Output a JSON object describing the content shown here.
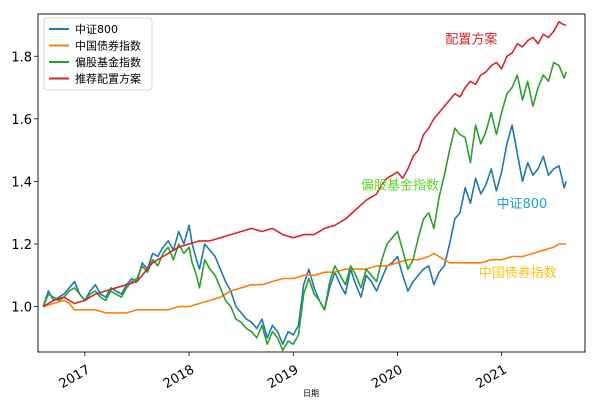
{
  "chart_data": {
    "type": "line",
    "xlabel": "日期",
    "ylabel": "",
    "xlim": [
      2016.55,
      2021.8
    ],
    "ylim": [
      0.855,
      1.935
    ],
    "xticks": [
      {
        "value": 2017.0,
        "label": "2017"
      },
      {
        "value": 2018.0,
        "label": "2018"
      },
      {
        "value": 2019.0,
        "label": "2019"
      },
      {
        "value": 2020.0,
        "label": "2020"
      },
      {
        "value": 2021.0,
        "label": "2021"
      }
    ],
    "yticks": [
      {
        "value": 1.0,
        "label": "1.0"
      },
      {
        "value": 1.2,
        "label": "1.2"
      },
      {
        "value": 1.4,
        "label": "1.4"
      },
      {
        "value": 1.6,
        "label": "1.6"
      },
      {
        "value": 1.8,
        "label": "1.8"
      }
    ],
    "grid": false,
    "legend_position": "top-left",
    "series": [
      {
        "name": "中证800",
        "color": "#1f77b4",
        "x": [
          2016.6,
          2016.65,
          2016.7,
          2016.75,
          2016.8,
          2016.85,
          2016.9,
          2016.95,
          2017.0,
          2017.05,
          2017.1,
          2017.15,
          2017.2,
          2017.25,
          2017.3,
          2017.35,
          2017.4,
          2017.45,
          2017.5,
          2017.55,
          2017.6,
          2017.65,
          2017.7,
          2017.75,
          2017.8,
          2017.85,
          2017.9,
          2017.95,
          2018.0,
          2018.03,
          2018.07,
          2018.1,
          2018.15,
          2018.2,
          2018.25,
          2018.3,
          2018.35,
          2018.4,
          2018.45,
          2018.5,
          2018.55,
          2018.6,
          2018.65,
          2018.7,
          2018.75,
          2018.8,
          2018.85,
          2018.9,
          2018.95,
          2019.0,
          2019.05,
          2019.1,
          2019.15,
          2019.2,
          2019.25,
          2019.3,
          2019.35,
          2019.4,
          2019.45,
          2019.5,
          2019.55,
          2019.6,
          2019.65,
          2019.7,
          2019.75,
          2019.8,
          2019.85,
          2019.9,
          2019.95,
          2020.0,
          2020.05,
          2020.1,
          2020.15,
          2020.2,
          2020.25,
          2020.3,
          2020.35,
          2020.4,
          2020.45,
          2020.5,
          2020.55,
          2020.6,
          2020.65,
          2020.7,
          2020.75,
          2020.8,
          2020.85,
          2020.9,
          2020.95,
          2021.0,
          2021.05,
          2021.1,
          2021.15,
          2021.2,
          2021.25,
          2021.3,
          2021.35,
          2021.4,
          2021.45,
          2021.5,
          2021.55,
          2021.6,
          2021.62
        ],
        "y": [
          1.0,
          1.05,
          1.02,
          1.03,
          1.04,
          1.06,
          1.08,
          1.04,
          1.02,
          1.05,
          1.07,
          1.04,
          1.03,
          1.06,
          1.05,
          1.04,
          1.07,
          1.09,
          1.08,
          1.14,
          1.12,
          1.17,
          1.16,
          1.19,
          1.21,
          1.18,
          1.24,
          1.2,
          1.26,
          1.2,
          1.15,
          1.12,
          1.2,
          1.18,
          1.16,
          1.12,
          1.08,
          1.05,
          1.0,
          0.98,
          0.96,
          0.95,
          0.93,
          0.96,
          0.9,
          0.94,
          0.92,
          0.88,
          0.92,
          0.91,
          0.94,
          1.07,
          1.12,
          1.06,
          1.02,
          0.99,
          1.06,
          1.11,
          1.07,
          1.04,
          1.12,
          1.07,
          1.03,
          1.1,
          1.08,
          1.05,
          1.09,
          1.13,
          1.14,
          1.16,
          1.1,
          1.05,
          1.08,
          1.1,
          1.12,
          1.13,
          1.07,
          1.11,
          1.13,
          1.2,
          1.28,
          1.3,
          1.38,
          1.33,
          1.41,
          1.36,
          1.39,
          1.44,
          1.37,
          1.43,
          1.52,
          1.58,
          1.49,
          1.4,
          1.46,
          1.42,
          1.44,
          1.48,
          1.42,
          1.44,
          1.45,
          1.38,
          1.4
        ]
      },
      {
        "name": "中国债券指数",
        "color": "#ff7f0e",
        "x": [
          2016.6,
          2016.7,
          2016.8,
          2016.85,
          2016.9,
          2016.95,
          2017.0,
          2017.1,
          2017.2,
          2017.3,
          2017.4,
          2017.5,
          2017.6,
          2017.7,
          2017.8,
          2017.9,
          2018.0,
          2018.1,
          2018.2,
          2018.3,
          2018.4,
          2018.5,
          2018.6,
          2018.7,
          2018.8,
          2018.9,
          2019.0,
          2019.1,
          2019.2,
          2019.3,
          2019.4,
          2019.5,
          2019.6,
          2019.7,
          2019.8,
          2019.9,
          2020.0,
          2020.1,
          2020.2,
          2020.3,
          2020.35,
          2020.4,
          2020.45,
          2020.5,
          2020.6,
          2020.7,
          2020.8,
          2020.9,
          2021.0,
          2021.1,
          2021.2,
          2021.3,
          2021.4,
          2021.5,
          2021.55,
          2021.62
        ],
        "y": [
          1.0,
          1.01,
          1.02,
          1.01,
          0.99,
          0.99,
          0.99,
          0.99,
          0.98,
          0.98,
          0.98,
          0.99,
          0.99,
          0.99,
          0.99,
          1.0,
          1.0,
          1.01,
          1.02,
          1.03,
          1.05,
          1.06,
          1.07,
          1.07,
          1.08,
          1.09,
          1.09,
          1.1,
          1.1,
          1.11,
          1.11,
          1.12,
          1.12,
          1.12,
          1.13,
          1.13,
          1.14,
          1.15,
          1.15,
          1.16,
          1.17,
          1.16,
          1.15,
          1.14,
          1.14,
          1.14,
          1.14,
          1.15,
          1.15,
          1.16,
          1.16,
          1.17,
          1.18,
          1.19,
          1.2,
          1.2
        ]
      },
      {
        "name": "偏股基金指数",
        "color": "#2ca02c",
        "x": [
          2016.6,
          2016.65,
          2016.7,
          2016.75,
          2016.8,
          2016.85,
          2016.9,
          2016.95,
          2017.0,
          2017.05,
          2017.1,
          2017.15,
          2017.2,
          2017.25,
          2017.3,
          2017.35,
          2017.4,
          2017.45,
          2017.5,
          2017.55,
          2017.6,
          2017.65,
          2017.7,
          2017.75,
          2017.8,
          2017.85,
          2017.9,
          2017.95,
          2018.0,
          2018.03,
          2018.07,
          2018.1,
          2018.15,
          2018.2,
          2018.25,
          2018.3,
          2018.35,
          2018.4,
          2018.45,
          2018.5,
          2018.55,
          2018.6,
          2018.65,
          2018.7,
          2018.75,
          2018.8,
          2018.85,
          2018.9,
          2018.95,
          2019.0,
          2019.05,
          2019.1,
          2019.15,
          2019.2,
          2019.25,
          2019.3,
          2019.35,
          2019.4,
          2019.45,
          2019.5,
          2019.55,
          2019.6,
          2019.65,
          2019.7,
          2019.75,
          2019.8,
          2019.85,
          2019.9,
          2019.95,
          2020.0,
          2020.05,
          2020.1,
          2020.15,
          2020.2,
          2020.25,
          2020.3,
          2020.35,
          2020.4,
          2020.45,
          2020.5,
          2020.55,
          2020.6,
          2020.65,
          2020.7,
          2020.75,
          2020.8,
          2020.85,
          2020.9,
          2020.95,
          2021.0,
          2021.05,
          2021.1,
          2021.15,
          2021.2,
          2021.25,
          2021.3,
          2021.35,
          2021.4,
          2021.45,
          2021.5,
          2021.55,
          2021.6,
          2021.62
        ],
        "y": [
          1.0,
          1.04,
          1.03,
          1.02,
          1.03,
          1.05,
          1.06,
          1.04,
          1.02,
          1.04,
          1.05,
          1.03,
          1.02,
          1.05,
          1.04,
          1.03,
          1.06,
          1.08,
          1.09,
          1.13,
          1.11,
          1.15,
          1.13,
          1.17,
          1.19,
          1.15,
          1.2,
          1.17,
          1.19,
          1.14,
          1.1,
          1.06,
          1.15,
          1.12,
          1.1,
          1.06,
          1.02,
          1.0,
          0.96,
          0.95,
          0.93,
          0.92,
          0.9,
          0.94,
          0.88,
          0.92,
          0.9,
          0.86,
          0.89,
          0.88,
          0.91,
          1.04,
          1.09,
          1.04,
          1.02,
          0.99,
          1.08,
          1.13,
          1.1,
          1.07,
          1.13,
          1.1,
          1.06,
          1.12,
          1.1,
          1.08,
          1.15,
          1.2,
          1.22,
          1.24,
          1.18,
          1.12,
          1.15,
          1.22,
          1.28,
          1.3,
          1.25,
          1.35,
          1.42,
          1.5,
          1.57,
          1.55,
          1.54,
          1.46,
          1.58,
          1.52,
          1.56,
          1.62,
          1.55,
          1.62,
          1.68,
          1.7,
          1.74,
          1.66,
          1.72,
          1.64,
          1.7,
          1.74,
          1.72,
          1.78,
          1.77,
          1.73,
          1.75
        ]
      },
      {
        "name": "推荐配置方案",
        "color": "#d62728",
        "x": [
          2016.6,
          2016.7,
          2016.8,
          2016.85,
          2016.9,
          2017.0,
          2017.1,
          2017.2,
          2017.3,
          2017.4,
          2017.5,
          2017.55,
          2017.6,
          2017.65,
          2017.7,
          2017.75,
          2017.8,
          2017.85,
          2017.9,
          2018.0,
          2018.1,
          2018.2,
          2018.3,
          2018.4,
          2018.5,
          2018.6,
          2018.7,
          2018.8,
          2018.9,
          2019.0,
          2019.1,
          2019.2,
          2019.3,
          2019.4,
          2019.5,
          2019.6,
          2019.7,
          2019.75,
          2019.8,
          2019.85,
          2019.9,
          2019.95,
          2020.0,
          2020.05,
          2020.1,
          2020.15,
          2020.2,
          2020.25,
          2020.3,
          2020.35,
          2020.4,
          2020.45,
          2020.5,
          2020.55,
          2020.6,
          2020.65,
          2020.7,
          2020.75,
          2020.8,
          2020.85,
          2020.9,
          2020.95,
          2021.0,
          2021.05,
          2021.1,
          2021.15,
          2021.2,
          2021.25,
          2021.3,
          2021.35,
          2021.4,
          2021.45,
          2021.5,
          2021.55,
          2021.6,
          2021.62
        ],
        "y": [
          1.0,
          1.02,
          1.03,
          1.02,
          1.01,
          1.02,
          1.04,
          1.05,
          1.06,
          1.07,
          1.08,
          1.1,
          1.12,
          1.14,
          1.15,
          1.16,
          1.17,
          1.18,
          1.19,
          1.2,
          1.21,
          1.21,
          1.22,
          1.23,
          1.24,
          1.25,
          1.24,
          1.25,
          1.23,
          1.22,
          1.23,
          1.23,
          1.25,
          1.26,
          1.28,
          1.31,
          1.34,
          1.35,
          1.36,
          1.39,
          1.41,
          1.42,
          1.43,
          1.41,
          1.44,
          1.48,
          1.5,
          1.55,
          1.57,
          1.6,
          1.62,
          1.64,
          1.66,
          1.68,
          1.67,
          1.7,
          1.72,
          1.71,
          1.74,
          1.75,
          1.77,
          1.78,
          1.76,
          1.8,
          1.81,
          1.84,
          1.83,
          1.85,
          1.86,
          1.84,
          1.87,
          1.86,
          1.88,
          1.91,
          1.9,
          1.9
        ]
      }
    ],
    "annotations": [
      {
        "text": "配置方案",
        "color": "#d62728",
        "x": 2020.46,
        "y": 1.84
      },
      {
        "text": "偏股基金指数",
        "color": "#5cd62c",
        "x": 2019.65,
        "y": 1.375
      },
      {
        "text": "中证800",
        "color": "#1f9fd6",
        "x": 2020.95,
        "y": 1.315
      },
      {
        "text": "中国债券指数",
        "color": "#f5c518",
        "x": 2020.78,
        "y": 1.095
      }
    ]
  }
}
